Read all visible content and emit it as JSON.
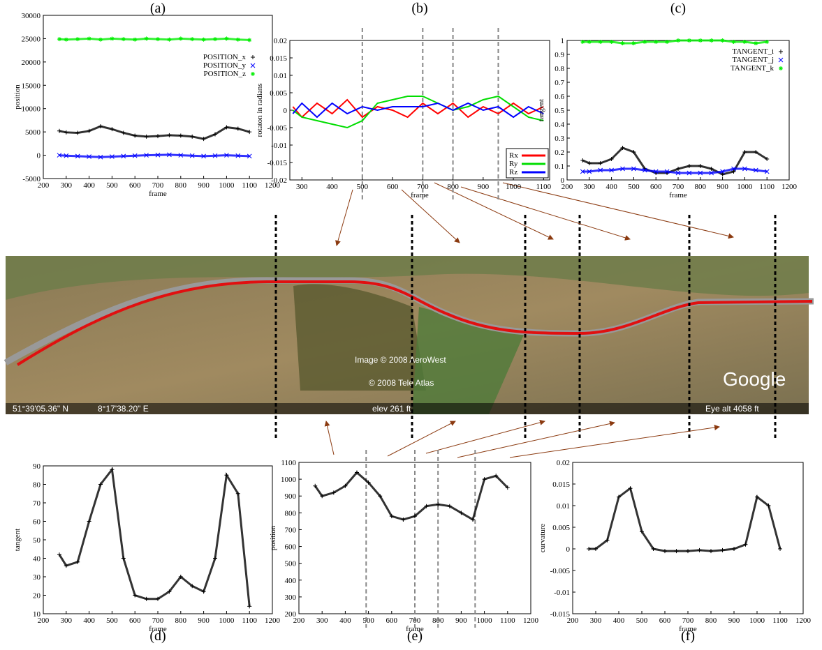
{
  "chart_data": [
    {
      "type": "scatter",
      "title": "(a)",
      "xlabel": "frame",
      "ylabel": "position",
      "legend": "upper right",
      "x": [
        270,
        300,
        350,
        400,
        450,
        500,
        550,
        600,
        650,
        700,
        750,
        800,
        850,
        900,
        950,
        1000,
        1050,
        1100
      ],
      "series": [
        {
          "name": "POSITION_x",
          "color": "#000000",
          "marker": "+",
          "values": [
            5200,
            4900,
            4800,
            5200,
            6200,
            5600,
            4800,
            4200,
            4000,
            4100,
            4300,
            4200,
            4000,
            3500,
            4500,
            6000,
            5700,
            5000
          ]
        },
        {
          "name": "POSITION_y",
          "color": "#0000ff",
          "marker": "x",
          "values": [
            0,
            -100,
            -200,
            -300,
            -400,
            -300,
            -200,
            -100,
            0,
            50,
            100,
            0,
            -100,
            -200,
            -100,
            0,
            -100,
            -200
          ]
        },
        {
          "name": "POSITION_z",
          "color": "#00ee00",
          "marker": "*",
          "values": [
            24900,
            24800,
            24900,
            25000,
            24800,
            25000,
            24900,
            24800,
            25000,
            24900,
            24800,
            25000,
            24900,
            24800,
            24900,
            25000,
            24800,
            24700
          ]
        }
      ],
      "xlim": [
        200,
        1200
      ],
      "xticks": [
        200,
        300,
        400,
        500,
        600,
        700,
        800,
        900,
        1000,
        1100,
        1200
      ],
      "ylim": [
        -5000,
        30000
      ],
      "yticks": [
        -5000,
        0,
        5000,
        10000,
        15000,
        20000,
        25000,
        30000
      ]
    },
    {
      "type": "line",
      "title": "(b)",
      "xlabel": "frame",
      "ylabel": "rotaton in radians",
      "legend": "lower right",
      "x": [
        270,
        300,
        350,
        400,
        450,
        500,
        550,
        600,
        650,
        700,
        750,
        800,
        850,
        900,
        950,
        1000,
        1050,
        1100
      ],
      "series": [
        {
          "name": "Rx",
          "color": "#ff0000",
          "values": [
            0.001,
            -0.002,
            0.002,
            -0.001,
            0.003,
            -0.002,
            0.001,
            0,
            -0.002,
            0.002,
            -0.001,
            0.002,
            -0.002,
            0.001,
            -0.001,
            0.002,
            -0.001,
            0.001
          ]
        },
        {
          "name": "Ry",
          "color": "#00dd00",
          "values": [
            0,
            -0.002,
            -0.003,
            -0.004,
            -0.005,
            -0.003,
            0.002,
            0.003,
            0.004,
            0.004,
            0.002,
            0,
            0.001,
            0.003,
            0.004,
            0.001,
            -0.002,
            -0.003
          ]
        },
        {
          "name": "Rz",
          "color": "#0000ff",
          "values": [
            -0.001,
            0.002,
            -0.002,
            0.002,
            -0.001,
            0.001,
            0,
            0.001,
            0.001,
            0.001,
            0.002,
            0,
            0.002,
            0,
            0.001,
            -0.002,
            0.001,
            -0.001
          ]
        }
      ],
      "vlines": [
        500,
        700,
        800,
        950
      ],
      "xlim": [
        260,
        1120
      ],
      "xticks": [
        300,
        400,
        500,
        600,
        700,
        800,
        900,
        1000,
        1100
      ],
      "ylim": [
        -0.02,
        0.02
      ],
      "yticks": [
        -0.02,
        -0.015,
        -0.01,
        -0.005,
        0,
        0.005,
        0.01,
        0.015,
        0.02
      ]
    },
    {
      "type": "scatter",
      "title": "(c)",
      "xlabel": "frame",
      "ylabel": "tangent",
      "legend": "upper right",
      "x": [
        270,
        300,
        350,
        400,
        450,
        500,
        550,
        600,
        650,
        700,
        750,
        800,
        850,
        900,
        950,
        1000,
        1050,
        1100
      ],
      "series": [
        {
          "name": "TANGENT_i",
          "color": "#000000",
          "marker": "+",
          "values": [
            0.14,
            0.12,
            0.12,
            0.15,
            0.23,
            0.2,
            0.08,
            0.05,
            0.05,
            0.08,
            0.1,
            0.1,
            0.08,
            0.04,
            0.06,
            0.2,
            0.2,
            0.15
          ]
        },
        {
          "name": "TANGENT_j",
          "color": "#0000ff",
          "marker": "x",
          "values": [
            0.06,
            0.06,
            0.07,
            0.07,
            0.08,
            0.08,
            0.07,
            0.06,
            0.06,
            0.05,
            0.05,
            0.05,
            0.05,
            0.06,
            0.08,
            0.08,
            0.07,
            0.06
          ]
        },
        {
          "name": "TANGENT_k",
          "color": "#00ee00",
          "marker": "*",
          "values": [
            0.99,
            0.99,
            0.99,
            0.99,
            0.98,
            0.98,
            0.99,
            0.99,
            0.99,
            1,
            1,
            1,
            1,
            1,
            0.99,
            0.99,
            0.98,
            0.99
          ]
        }
      ],
      "xlim": [
        200,
        1200
      ],
      "xticks": [
        200,
        300,
        400,
        500,
        600,
        700,
        800,
        900,
        1000,
        1100,
        1200
      ],
      "ylim": [
        0,
        1
      ],
      "yticks": [
        0,
        0.1,
        0.2,
        0.3,
        0.4,
        0.5,
        0.6,
        0.7,
        0.8,
        0.9,
        1
      ]
    },
    {
      "type": "scatter",
      "title": "(d)",
      "xlabel": "frame",
      "ylabel": "tangent",
      "x": [
        270,
        300,
        350,
        400,
        450,
        500,
        550,
        600,
        650,
        700,
        750,
        800,
        850,
        900,
        950,
        1000,
        1050,
        1100
      ],
      "series": [
        {
          "name": "tangent",
          "color": "#000000",
          "marker": "+",
          "values": [
            42,
            36,
            38,
            60,
            80,
            88,
            40,
            20,
            18,
            18,
            22,
            30,
            25,
            22,
            40,
            85,
            75,
            14
          ]
        }
      ],
      "xlim": [
        200,
        1200
      ],
      "xticks": [
        200,
        300,
        400,
        500,
        600,
        700,
        800,
        900,
        1000,
        1100,
        1200
      ],
      "ylim": [
        10,
        90
      ],
      "yticks": [
        10,
        20,
        30,
        40,
        50,
        60,
        70,
        80,
        90
      ]
    },
    {
      "type": "scatter",
      "title": "(e)",
      "xlabel": "frame",
      "ylabel": "position",
      "x": [
        270,
        300,
        350,
        400,
        450,
        500,
        550,
        600,
        650,
        700,
        750,
        800,
        850,
        900,
        950,
        1000,
        1050,
        1100
      ],
      "series": [
        {
          "name": "position",
          "color": "#000000",
          "marker": "+",
          "values": [
            960,
            900,
            920,
            960,
            1040,
            980,
            900,
            780,
            760,
            780,
            840,
            850,
            840,
            800,
            760,
            1000,
            1020,
            950
          ]
        }
      ],
      "vlines": [
        490,
        700,
        800,
        960
      ],
      "xlim": [
        200,
        1200
      ],
      "xticks": [
        200,
        300,
        400,
        500,
        600,
        700,
        800,
        900,
        1000,
        1100,
        1200
      ],
      "ylim": [
        200,
        1100
      ],
      "yticks": [
        200,
        300,
        400,
        500,
        600,
        700,
        800,
        900,
        1000,
        1100
      ]
    },
    {
      "type": "scatter",
      "title": "(f)",
      "xlabel": "frame",
      "ylabel": "curvature",
      "x": [
        270,
        300,
        350,
        400,
        450,
        500,
        550,
        600,
        650,
        700,
        750,
        800,
        850,
        900,
        950,
        1000,
        1050,
        1100
      ],
      "series": [
        {
          "name": "curvature",
          "color": "#000000",
          "marker": "+",
          "values": [
            0,
            0,
            0.002,
            0.012,
            0.014,
            0.004,
            0,
            -0.0005,
            -0.0005,
            -0.0005,
            -0.0003,
            -0.0005,
            -0.0003,
            0,
            0.001,
            0.012,
            0.01,
            0
          ]
        }
      ],
      "xlim": [
        200,
        1200
      ],
      "xticks": [
        200,
        300,
        400,
        500,
        600,
        700,
        800,
        900,
        1000,
        1100,
        1200
      ],
      "ylim": [
        -0.015,
        0.02
      ],
      "yticks": [
        -0.015,
        -0.01,
        -0.005,
        0,
        0.005,
        0.01,
        0.015,
        0.02
      ]
    }
  ],
  "map": {
    "credit1": "Image © 2008 AeroWest",
    "credit2": "© 2008 Tele Atlas",
    "lat": "51°39'05.36\" N",
    "lon": "8°17'38.20\" E",
    "elev": "elev  261 ft",
    "eye": "Eye alt  4058 ft",
    "logo": "Google"
  }
}
